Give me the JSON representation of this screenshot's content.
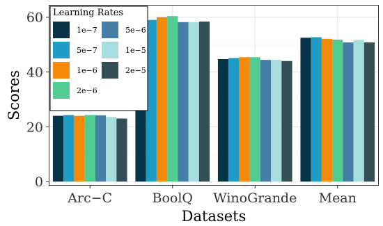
{
  "chart_data": {
    "type": "bar",
    "xlabel": "Datasets",
    "ylabel": "Scores",
    "ylim": [
      -1.5,
      64.5
    ],
    "yticks": [
      0,
      20,
      40,
      60
    ],
    "grid": true,
    "legend": {
      "title": "Learning Rates",
      "placement": "top-left"
    },
    "categories": [
      "Arc−C",
      "BoolQ",
      "WinoGrande",
      "Mean"
    ],
    "series": [
      {
        "name": "1e−7",
        "color": "#08344a",
        "values": [
          24.0,
          57.8,
          44.7,
          52.5
        ]
      },
      {
        "name": "5e−7",
        "color": "#1f9cc5",
        "values": [
          24.3,
          59.0,
          45.1,
          52.7
        ]
      },
      {
        "name": "1e−6",
        "color": "#f58a0a",
        "values": [
          24.0,
          60.0,
          45.4,
          52.1
        ]
      },
      {
        "name": "2e−6",
        "color": "#52cc91",
        "values": [
          24.3,
          60.4,
          45.4,
          51.8
        ]
      },
      {
        "name": "5e−6",
        "color": "#457fa6",
        "values": [
          24.2,
          58.2,
          44.4,
          50.8
        ]
      },
      {
        "name": "1e−5",
        "color": "#a9dcdd",
        "values": [
          23.6,
          58.2,
          44.4,
          51.7
        ]
      },
      {
        "name": "2e−5",
        "color": "#334e55",
        "values": [
          23.0,
          58.4,
          44.0,
          50.8
        ]
      }
    ]
  }
}
